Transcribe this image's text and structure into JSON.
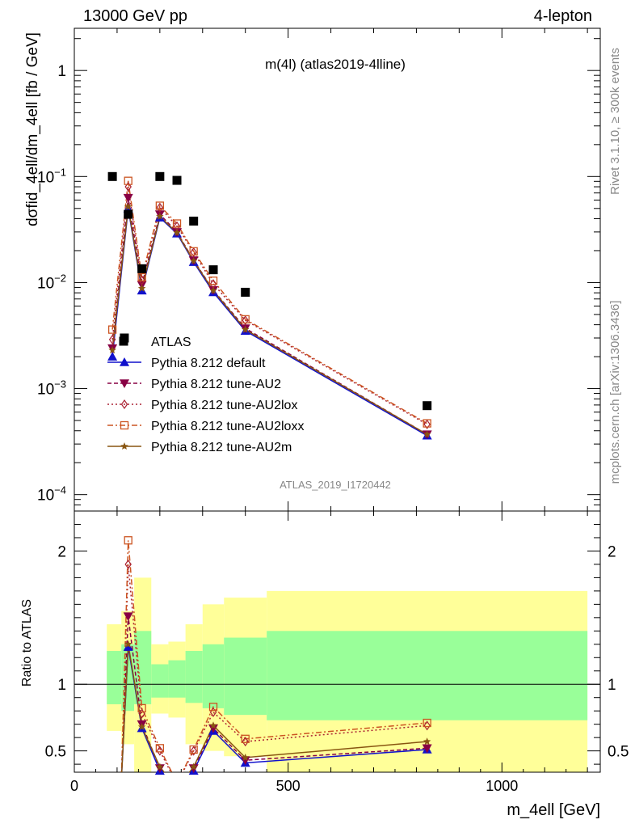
{
  "header": {
    "energy": "13000 GeV pp",
    "channel": "4-lepton",
    "plot_title": "m(4l) (atlas2019-4lline)",
    "watermark": "ATLAS_2019_I1720442",
    "side_rivet": "Rivet 3.1.10, ≥ 300k events",
    "side_mcplots": "mcplots.cern.ch [arXiv:1306.3436]"
  },
  "chart_data": {
    "type": "line",
    "x_log": false,
    "xlabel": "m_4ell [GeV]",
    "ylabel_main": "dσfid_4ell/dm_4ell [fb / GeV]",
    "ylabel_ratio": "Ratio to ATLAS",
    "xlim": [
      0,
      1230
    ],
    "ylim_main": [
      7e-05,
      2.5
    ],
    "ylim_ratio": [
      0.34,
      2.3
    ],
    "y_log_main": true,
    "x_ticks": [
      0,
      500,
      1000
    ],
    "x_tick_labels": [
      "0",
      "500",
      "1000"
    ],
    "y_ticks_main": [
      0.0001,
      0.001,
      0.01,
      0.1,
      1
    ],
    "y_tick_labels_main": [
      {
        "base": "10",
        "exp": "−4"
      },
      {
        "base": "10",
        "exp": "−3"
      },
      {
        "base": "10",
        "exp": "−2"
      },
      {
        "base": "10",
        "exp": "−1"
      },
      {
        "base": "1",
        "exp": ""
      }
    ],
    "y_ticks_ratio": [
      0.5,
      1,
      2
    ],
    "y_tick_labels_ratio": [
      "0.5",
      "1",
      "2"
    ],
    "legend_position": "middle-left",
    "bins": [
      {
        "lo": 76,
        "hi": 110
      },
      {
        "lo": 110,
        "hi": 140
      },
      {
        "lo": 140,
        "hi": 180
      },
      {
        "lo": 180,
        "hi": 220
      },
      {
        "lo": 220,
        "hi": 260
      },
      {
        "lo": 260,
        "hi": 300
      },
      {
        "lo": 300,
        "hi": 350
      },
      {
        "lo": 350,
        "hi": 450
      },
      {
        "lo": 450,
        "hi": 1200
      }
    ],
    "band_inner": [
      [
        0.85,
        1.25
      ],
      [
        0.8,
        1.3
      ],
      [
        0.85,
        1.4
      ],
      [
        0.9,
        1.15
      ],
      [
        0.9,
        1.18
      ],
      [
        0.86,
        1.25
      ],
      [
        0.82,
        1.3
      ],
      [
        0.77,
        1.35
      ],
      [
        0.73,
        1.4
      ]
    ],
    "band_outer": [
      [
        0.65,
        1.45
      ],
      [
        0.55,
        1.55
      ],
      [
        0.32,
        1.8
      ],
      [
        0.78,
        1.3
      ],
      [
        0.75,
        1.32
      ],
      [
        0.55,
        1.45
      ],
      [
        0.5,
        1.6
      ],
      [
        0.46,
        1.65
      ],
      [
        0.33,
        1.7
      ]
    ],
    "data": {
      "name": "ATLAS",
      "x": [
        89,
        117,
        126,
        158,
        200,
        240,
        279,
        325,
        400,
        825
      ],
      "y": [
        0.1,
        0.003,
        0.044,
        0.0135,
        0.1,
        0.092,
        0.038,
        0.0132,
        0.0081,
        0.00069
      ]
    },
    "series": [
      {
        "name": "Pythia 8.212 default",
        "color": "#1111cc",
        "marker": "triangle-up",
        "dash": "",
        "x": [
          89,
          126,
          158,
          200,
          240,
          279,
          325,
          400,
          825
        ],
        "y": [
          0.002,
          0.05,
          0.0084,
          0.041,
          0.029,
          0.0156,
          0.0081,
          0.0035,
          0.00036
        ],
        "ratio_x": [
          126,
          158,
          200,
          240,
          279,
          325,
          400,
          825
        ],
        "ratio_y": [
          1.28,
          0.67,
          0.35,
          0.2,
          0.35,
          0.65,
          0.41,
          0.51
        ]
      },
      {
        "name": "Pythia 8.212 tune-AU2",
        "color": "#880044",
        "marker": "triangle-down",
        "dash": "5,3",
        "x": [
          89,
          126,
          158,
          200,
          240,
          279,
          325,
          400,
          825
        ],
        "y": [
          0.0024,
          0.063,
          0.0095,
          0.044,
          0.03,
          0.0162,
          0.0085,
          0.0037,
          0.00037
        ],
        "ratio_x": [
          126,
          158,
          200,
          240,
          279,
          325,
          400,
          825
        ],
        "ratio_y": [
          1.51,
          0.7,
          0.37,
          0.22,
          0.37,
          0.67,
          0.43,
          0.52
        ]
      },
      {
        "name": "Pythia 8.212 tune-AU2lox",
        "color": "#aa2233",
        "marker": "diamond",
        "dash": "2,3",
        "x": [
          89,
          126,
          158,
          200,
          240,
          279,
          325,
          400,
          825
        ],
        "y": [
          0.0029,
          0.08,
          0.0105,
          0.051,
          0.034,
          0.0193,
          0.0097,
          0.0044,
          0.00046
        ],
        "ratio_x": [
          126,
          158,
          200,
          240,
          279,
          325,
          400,
          825
        ],
        "ratio_y": [
          1.9,
          0.78,
          0.5,
          0.25,
          0.5,
          0.79,
          0.57,
          0.69
        ]
      },
      {
        "name": "Pythia 8.212 tune-AU2loxx",
        "color": "#cc5522",
        "marker": "square-open",
        "dash": "7,3,2,3",
        "x": [
          89,
          126,
          158,
          200,
          240,
          279,
          325,
          400,
          825
        ],
        "y": [
          0.0036,
          0.091,
          0.0112,
          0.053,
          0.036,
          0.0197,
          0.0104,
          0.0045,
          0.00047
        ],
        "ratio_x": [
          126,
          158,
          200,
          240,
          279,
          325,
          400,
          825
        ],
        "ratio_y": [
          2.08,
          0.82,
          0.52,
          0.26,
          0.51,
          0.83,
          0.59,
          0.71
        ]
      },
      {
        "name": "Pythia 8.212 tune-AU2m",
        "color": "#885511",
        "marker": "star",
        "dash": "",
        "x": [
          89,
          126,
          158,
          200,
          240,
          279,
          325,
          400,
          825
        ],
        "y": [
          0.0023,
          0.052,
          0.0088,
          0.042,
          0.0295,
          0.016,
          0.0084,
          0.0036,
          0.00037
        ],
        "ratio_x": [
          126,
          158,
          200,
          240,
          279,
          325,
          400,
          825
        ],
        "ratio_y": [
          1.3,
          0.68,
          0.38,
          0.22,
          0.38,
          0.69,
          0.45,
          0.57
        ]
      }
    ]
  }
}
